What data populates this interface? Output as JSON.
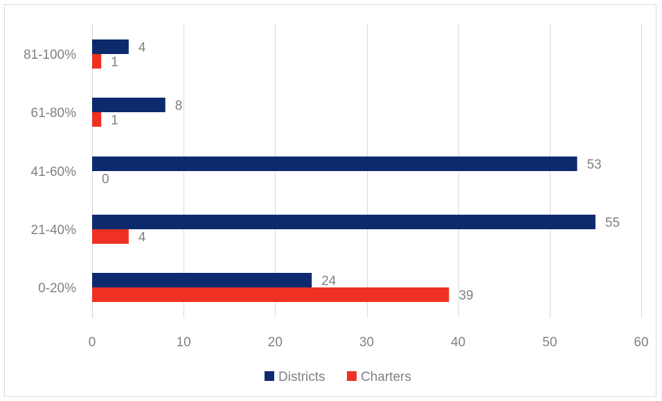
{
  "chart_data": {
    "type": "bar",
    "orientation": "horizontal",
    "categories": [
      "0-20%",
      "21-40%",
      "41-60%",
      "61-80%",
      "81-100%"
    ],
    "series": [
      {
        "name": "Districts",
        "color": "#0d2a6e",
        "values": [
          24,
          55,
          53,
          8,
          4
        ]
      },
      {
        "name": "Charters",
        "color": "#ee3123",
        "values": [
          39,
          4,
          0,
          1,
          1
        ]
      }
    ],
    "xlim": [
      0,
      60
    ],
    "xticks": [
      0,
      10,
      20,
      30,
      40,
      50,
      60
    ],
    "grid": true,
    "legend": "bottom",
    "data_labels": true,
    "title": "",
    "xlabel": "",
    "ylabel": ""
  }
}
